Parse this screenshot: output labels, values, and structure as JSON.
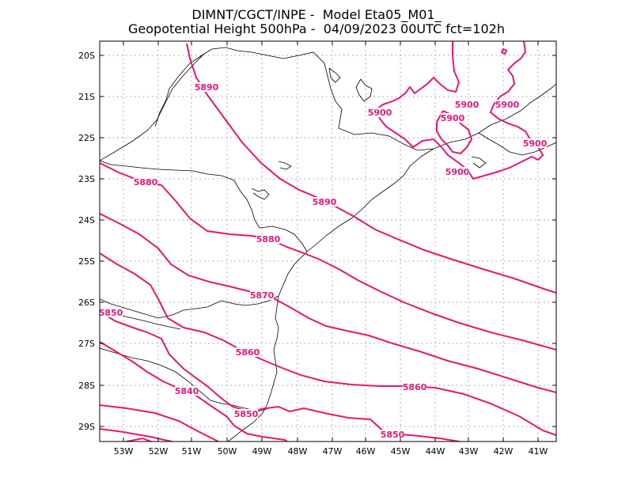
{
  "header": {
    "line1": "DIMNT/CGCT/INPE -  Model Eta05_M01_",
    "line2": "Geopotential Height 500hPa -  04/09/2023 00UTC fct=102h"
  },
  "axes": {
    "lat_labels": [
      "20S",
      "21S",
      "22S",
      "23S",
      "24S",
      "25S",
      "26S",
      "27S",
      "28S",
      "29S"
    ],
    "lon_labels": [
      "53W",
      "52W",
      "51W",
      "50W",
      "49W",
      "48W",
      "47W",
      "46W",
      "45W",
      "44W",
      "43W",
      "42W",
      "41W"
    ]
  },
  "colors": {
    "contour": "#e8176d",
    "contour_label": "#e8177a",
    "coastline": "#000000",
    "grid": "#999999"
  },
  "contour_labels": [
    {
      "text": "5890"
    },
    {
      "text": "5890"
    },
    {
      "text": "5880"
    },
    {
      "text": "5880"
    },
    {
      "text": "5870"
    },
    {
      "text": "5860"
    },
    {
      "text": "5860"
    },
    {
      "text": "5850"
    },
    {
      "text": "5850"
    },
    {
      "text": "5850"
    },
    {
      "text": "5840"
    },
    {
      "text": "5900"
    },
    {
      "text": "5900"
    },
    {
      "text": "5900"
    },
    {
      "text": "5900"
    },
    {
      "text": "5900"
    },
    {
      "text": "5900"
    }
  ]
}
